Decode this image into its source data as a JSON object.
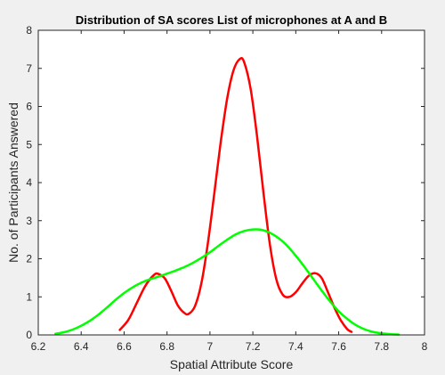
{
  "chart_data": {
    "type": "line",
    "title": "Distribution of SA scores List of microphones at A and B",
    "xlabel": "Spatial Attribute Score",
    "ylabel": "No. of Participants Answered",
    "xlim": [
      6.2,
      8
    ],
    "ylim": [
      0,
      8
    ],
    "xticks": [
      "6.2",
      "6.4",
      "6.6",
      "6.8",
      "7",
      "7.2",
      "7.4",
      "7.6",
      "7.8",
      "8"
    ],
    "yticks": [
      "0",
      "1",
      "2",
      "3",
      "4",
      "5",
      "6",
      "7",
      "8"
    ],
    "grid": false,
    "legend": "none",
    "series": [
      {
        "color": "#ff0000",
        "points": [
          [
            6.58,
            0.13
          ],
          [
            6.62,
            0.4
          ],
          [
            6.66,
            0.85
          ],
          [
            6.7,
            1.3
          ],
          [
            6.74,
            1.58
          ],
          [
            6.76,
            1.6
          ],
          [
            6.79,
            1.48
          ],
          [
            6.82,
            1.15
          ],
          [
            6.85,
            0.78
          ],
          [
            6.88,
            0.58
          ],
          [
            6.9,
            0.55
          ],
          [
            6.93,
            0.75
          ],
          [
            6.96,
            1.35
          ],
          [
            6.99,
            2.4
          ],
          [
            7.02,
            3.7
          ],
          [
            7.05,
            5.05
          ],
          [
            7.08,
            6.2
          ],
          [
            7.11,
            6.95
          ],
          [
            7.14,
            7.25
          ],
          [
            7.16,
            7.15
          ],
          [
            7.19,
            6.45
          ],
          [
            7.22,
            5.2
          ],
          [
            7.25,
            3.7
          ],
          [
            7.28,
            2.35
          ],
          [
            7.31,
            1.45
          ],
          [
            7.34,
            1.05
          ],
          [
            7.37,
            1.0
          ],
          [
            7.4,
            1.12
          ],
          [
            7.43,
            1.35
          ],
          [
            7.46,
            1.55
          ],
          [
            7.49,
            1.62
          ],
          [
            7.52,
            1.5
          ],
          [
            7.55,
            1.12
          ],
          [
            7.58,
            0.72
          ],
          [
            7.61,
            0.38
          ],
          [
            7.64,
            0.15
          ],
          [
            7.66,
            0.08
          ]
        ]
      },
      {
        "color": "#00ff00",
        "points": [
          [
            6.28,
            0.03
          ],
          [
            6.32,
            0.07
          ],
          [
            6.36,
            0.14
          ],
          [
            6.4,
            0.24
          ],
          [
            6.44,
            0.37
          ],
          [
            6.48,
            0.53
          ],
          [
            6.52,
            0.72
          ],
          [
            6.56,
            0.92
          ],
          [
            6.6,
            1.1
          ],
          [
            6.64,
            1.25
          ],
          [
            6.68,
            1.37
          ],
          [
            6.72,
            1.46
          ],
          [
            6.76,
            1.53
          ],
          [
            6.8,
            1.61
          ],
          [
            6.84,
            1.69
          ],
          [
            6.88,
            1.78
          ],
          [
            6.92,
            1.89
          ],
          [
            6.96,
            2.02
          ],
          [
            7.0,
            2.17
          ],
          [
            7.04,
            2.34
          ],
          [
            7.08,
            2.5
          ],
          [
            7.12,
            2.64
          ],
          [
            7.16,
            2.73
          ],
          [
            7.2,
            2.77
          ],
          [
            7.24,
            2.76
          ],
          [
            7.28,
            2.68
          ],
          [
            7.32,
            2.54
          ],
          [
            7.36,
            2.34
          ],
          [
            7.4,
            2.08
          ],
          [
            7.44,
            1.79
          ],
          [
            7.48,
            1.48
          ],
          [
            7.52,
            1.17
          ],
          [
            7.56,
            0.88
          ],
          [
            7.6,
            0.62
          ],
          [
            7.64,
            0.42
          ],
          [
            7.68,
            0.26
          ],
          [
            7.72,
            0.15
          ],
          [
            7.76,
            0.08
          ],
          [
            7.8,
            0.04
          ],
          [
            7.84,
            0.02
          ],
          [
            7.88,
            0.01
          ]
        ]
      }
    ]
  }
}
